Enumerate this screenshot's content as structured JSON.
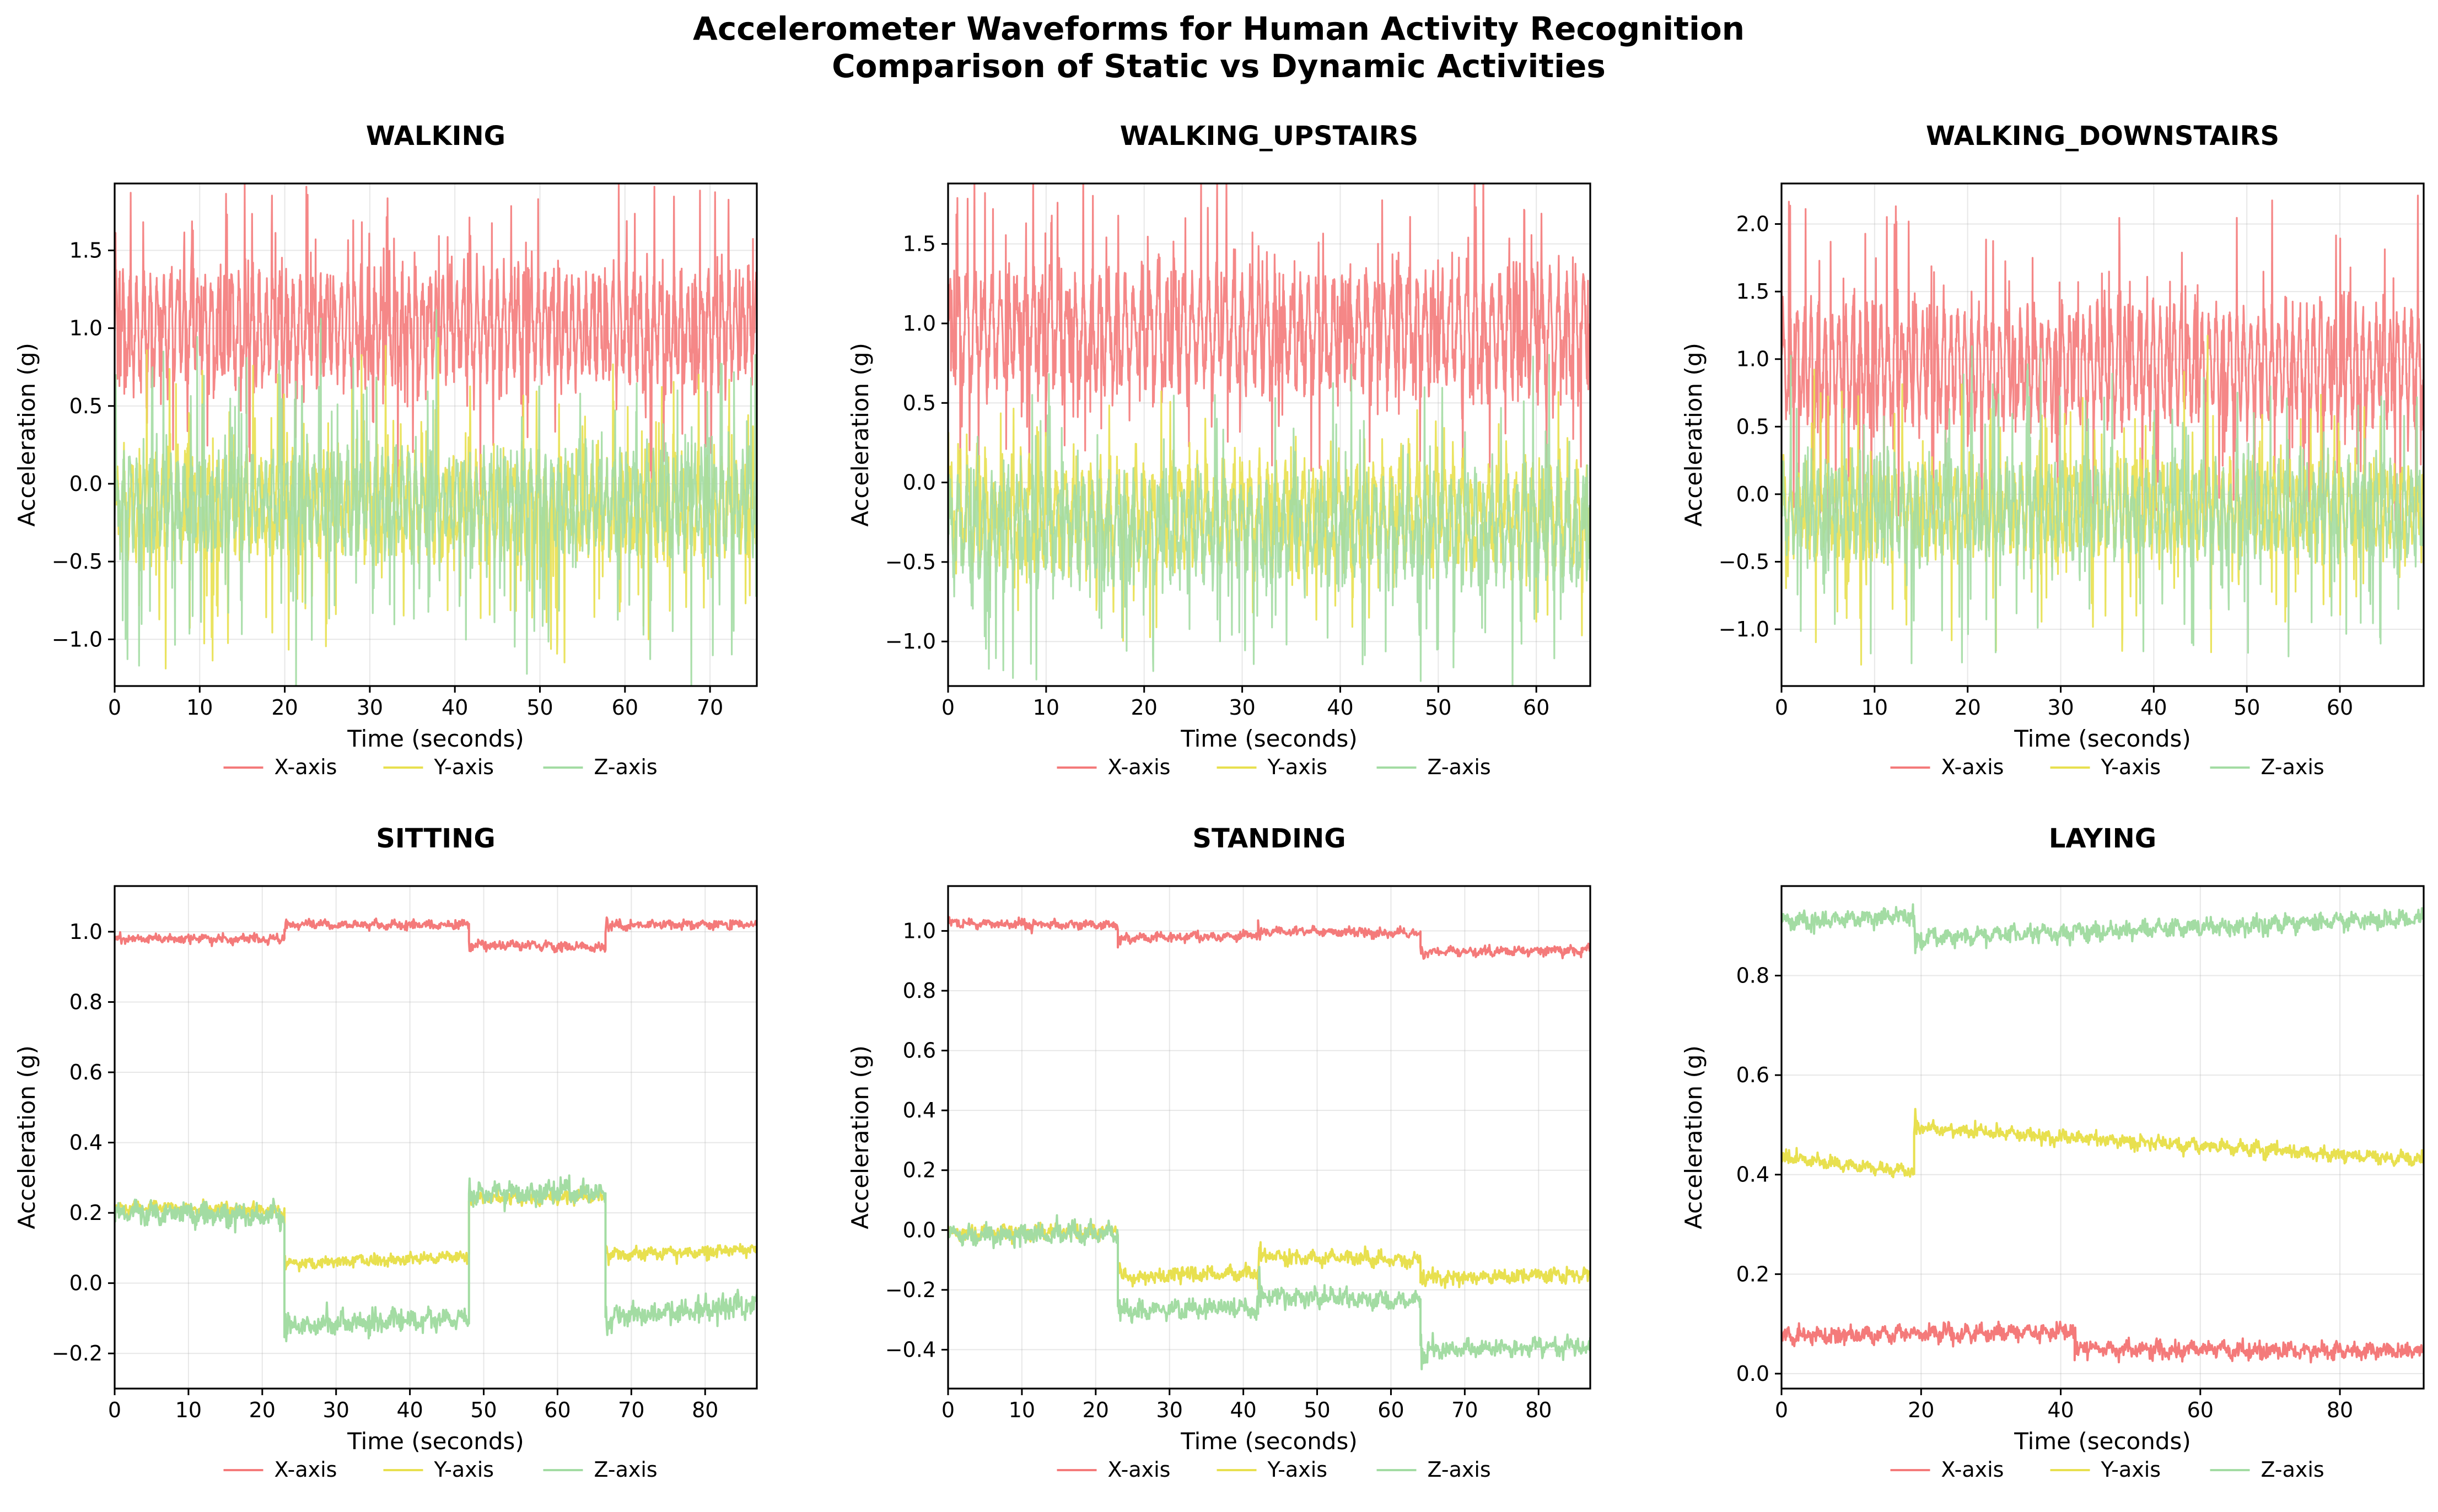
{
  "figure": {
    "title_line1": "Accelerometer Waveforms for Human Activity Recognition",
    "title_line2": "Comparison of Static vs Dynamic Activities"
  },
  "colors": {
    "x": "#f47a7a",
    "y": "#e8e04f",
    "z": "#a3dca3"
  },
  "chart_data": [
    {
      "type": "line",
      "title": "WALKING",
      "kind": "dynamic",
      "xlabel": "Time (seconds)",
      "ylabel": "Acceleration (g)",
      "xlim": [
        0,
        75.5
      ],
      "ylim": [
        -1.3,
        1.93
      ],
      "xticks": [
        0,
        10,
        20,
        30,
        40,
        50,
        60,
        70
      ],
      "yticks": [
        -1.0,
        -0.5,
        0.0,
        0.5,
        1.0,
        1.5
      ],
      "ytick_labels": [
        "−1.0",
        "−0.5",
        "0.0",
        "0.5",
        "1.0",
        "1.5"
      ],
      "grid": true,
      "legend": "bottom-center",
      "series": [
        {
          "name": "X-axis",
          "color": "#f47a7a",
          "mean": 1.0,
          "amplitude": 0.27,
          "period_s": 0.8,
          "peak": 0.7
        },
        {
          "name": "Y-axis",
          "color": "#e8e04f",
          "mean": -0.15,
          "amplitude": 0.22,
          "period_s": 0.9,
          "peak": 0.8
        },
        {
          "name": "Z-axis",
          "color": "#a3dca3",
          "mean": -0.12,
          "amplitude": 0.22,
          "period_s": 0.8,
          "peak": 0.9
        }
      ]
    },
    {
      "type": "line",
      "title": "WALKING_UPSTAIRS",
      "kind": "dynamic",
      "xlabel": "Time (seconds)",
      "ylabel": "Acceleration (g)",
      "xlim": [
        0,
        65.5
      ],
      "ylim": [
        -1.28,
        1.88
      ],
      "xticks": [
        0,
        10,
        20,
        30,
        40,
        50,
        60
      ],
      "yticks": [
        -1.0,
        -0.5,
        0.0,
        0.5,
        1.0,
        1.5
      ],
      "ytick_labels": [
        "−1.0",
        "−0.5",
        "0.0",
        "0.5",
        "1.0",
        "1.5"
      ],
      "grid": true,
      "legend": "bottom-center",
      "series": [
        {
          "name": "X-axis",
          "color": "#f47a7a",
          "mean": 0.95,
          "amplitude": 0.28,
          "period_s": 0.85,
          "peak": 0.75
        },
        {
          "name": "Y-axis",
          "color": "#e8e04f",
          "mean": -0.2,
          "amplitude": 0.22,
          "period_s": 0.9,
          "peak": 0.5
        },
        {
          "name": "Z-axis",
          "color": "#a3dca3",
          "mean": -0.3,
          "amplitude": 0.22,
          "period_s": 0.85,
          "peak": 0.8
        }
      ]
    },
    {
      "type": "line",
      "title": "WALKING_DOWNSTAIRS",
      "kind": "dynamic",
      "xlabel": "Time (seconds)",
      "ylabel": "Acceleration (g)",
      "xlim": [
        0,
        69
      ],
      "ylim": [
        -1.42,
        2.3
      ],
      "xticks": [
        0,
        10,
        20,
        30,
        40,
        50,
        60
      ],
      "yticks": [
        -1.0,
        -0.5,
        0.0,
        0.5,
        1.0,
        1.5,
        2.0
      ],
      "ytick_labels": [
        "−1.0",
        "−0.5",
        "0.0",
        "0.5",
        "1.0",
        "1.5",
        "2.0"
      ],
      "grid": true,
      "legend": "bottom-center",
      "series": [
        {
          "name": "X-axis",
          "color": "#f47a7a",
          "mean": 0.95,
          "amplitude": 0.33,
          "period_s": 0.75,
          "peak": 1.05
        },
        {
          "name": "Y-axis",
          "color": "#e8e04f",
          "mean": -0.1,
          "amplitude": 0.22,
          "period_s": 0.8,
          "peak": 0.8
        },
        {
          "name": "Z-axis",
          "color": "#a3dca3",
          "mean": -0.12,
          "amplitude": 0.25,
          "period_s": 0.75,
          "peak": 0.95
        }
      ]
    },
    {
      "type": "line",
      "title": "SITTING",
      "kind": "static",
      "xlabel": "Time (seconds)",
      "ylabel": "Acceleration (g)",
      "xlim": [
        0,
        87
      ],
      "ylim": [
        -0.3,
        1.13
      ],
      "xticks": [
        0,
        10,
        20,
        30,
        40,
        50,
        60,
        70,
        80
      ],
      "yticks": [
        -0.2,
        0.0,
        0.2,
        0.4,
        0.6,
        0.8,
        1.0
      ],
      "ytick_labels": [
        "−0.2",
        "0.0",
        "0.2",
        "0.4",
        "0.6",
        "0.8",
        "1.0"
      ],
      "grid": true,
      "legend": "bottom-center",
      "series": [
        {
          "name": "X-axis",
          "color": "#f47a7a",
          "noise": 0.006,
          "segments": [
            [
              0,
              23,
              0.98,
              0.98
            ],
            [
              23,
              48,
              1.02,
              1.02
            ],
            [
              48,
              66.5,
              0.965,
              0.955
            ],
            [
              66.5,
              87,
              1.02,
              1.02
            ]
          ]
        },
        {
          "name": "Y-axis",
          "color": "#e8e04f",
          "noise": 0.008,
          "segments": [
            [
              0,
              23,
              0.215,
              0.21
            ],
            [
              23,
              48,
              0.055,
              0.075
            ],
            [
              48,
              66.5,
              0.24,
              0.245
            ],
            [
              66.5,
              87,
              0.08,
              0.095
            ]
          ]
        },
        {
          "name": "Z-axis",
          "color": "#a3dca3",
          "noise": 0.015,
          "segments": [
            [
              0,
              23,
              0.2,
              0.19
            ],
            [
              23,
              48,
              -0.12,
              -0.1
            ],
            [
              48,
              66.5,
              0.255,
              0.26
            ],
            [
              66.5,
              87,
              -0.1,
              -0.06
            ]
          ]
        }
      ]
    },
    {
      "type": "line",
      "title": "STANDING",
      "kind": "static",
      "xlabel": "Time (seconds)",
      "ylabel": "Acceleration (g)",
      "xlim": [
        0,
        87
      ],
      "ylim": [
        -0.53,
        1.15
      ],
      "xticks": [
        0,
        10,
        20,
        30,
        40,
        50,
        60,
        70,
        80
      ],
      "yticks": [
        -0.4,
        -0.2,
        0.0,
        0.2,
        0.4,
        0.6,
        0.8,
        1.0
      ],
      "ytick_labels": [
        "−0.4",
        "−0.2",
        "0.0",
        "0.2",
        "0.4",
        "0.6",
        "0.8",
        "1.0"
      ],
      "grid": true,
      "legend": "bottom-center",
      "series": [
        {
          "name": "X-axis",
          "color": "#f47a7a",
          "noise": 0.007,
          "segments": [
            [
              0,
              23,
              1.025,
              1.02
            ],
            [
              23,
              42,
              0.975,
              0.985
            ],
            [
              42,
              64,
              1.0,
              0.99
            ],
            [
              64,
              87,
              0.93,
              0.935
            ]
          ]
        },
        {
          "name": "Y-axis",
          "color": "#e8e04f",
          "noise": 0.012,
          "segments": [
            [
              0,
              23,
              -0.01,
              0.0
            ],
            [
              23,
              42,
              -0.16,
              -0.14
            ],
            [
              42,
              64,
              -0.09,
              -0.1
            ],
            [
              64,
              87,
              -0.16,
              -0.15
            ]
          ]
        },
        {
          "name": "Z-axis",
          "color": "#a3dca3",
          "noise": 0.015,
          "segments": [
            [
              0,
              23,
              -0.02,
              -0.01
            ],
            [
              23,
              42,
              -0.27,
              -0.26
            ],
            [
              42,
              64,
              -0.22,
              -0.24
            ],
            [
              64,
              87,
              -0.4,
              -0.39
            ]
          ]
        }
      ]
    },
    {
      "type": "line",
      "title": "LAYING",
      "kind": "static",
      "xlabel": "Time (seconds)",
      "ylabel": "Acceleration (g)",
      "xlim": [
        0,
        92
      ],
      "ylim": [
        -0.03,
        0.98
      ],
      "xticks": [
        0,
        20,
        40,
        60,
        80
      ],
      "yticks": [
        0.0,
        0.2,
        0.4,
        0.6,
        0.8
      ],
      "ytick_labels": [
        "0.0",
        "0.2",
        "0.4",
        "0.6",
        "0.8"
      ],
      "grid": true,
      "legend": "bottom-center",
      "series": [
        {
          "name": "X-axis",
          "color": "#f47a7a",
          "noise": 0.008,
          "segments": [
            [
              0,
              42,
              0.075,
              0.085
            ],
            [
              42,
              92,
              0.05,
              0.045
            ]
          ]
        },
        {
          "name": "Y-axis",
          "color": "#e8e04f",
          "noise": 0.006,
          "segments": [
            [
              0,
              19,
              0.435,
              0.405
            ],
            [
              19,
              92,
              0.495,
              0.43
            ]
          ]
        },
        {
          "name": "Z-axis",
          "color": "#a3dca3",
          "noise": 0.008,
          "segments": [
            [
              0,
              19,
              0.91,
              0.92
            ],
            [
              19,
              92,
              0.875,
              0.915
            ]
          ]
        }
      ]
    }
  ]
}
